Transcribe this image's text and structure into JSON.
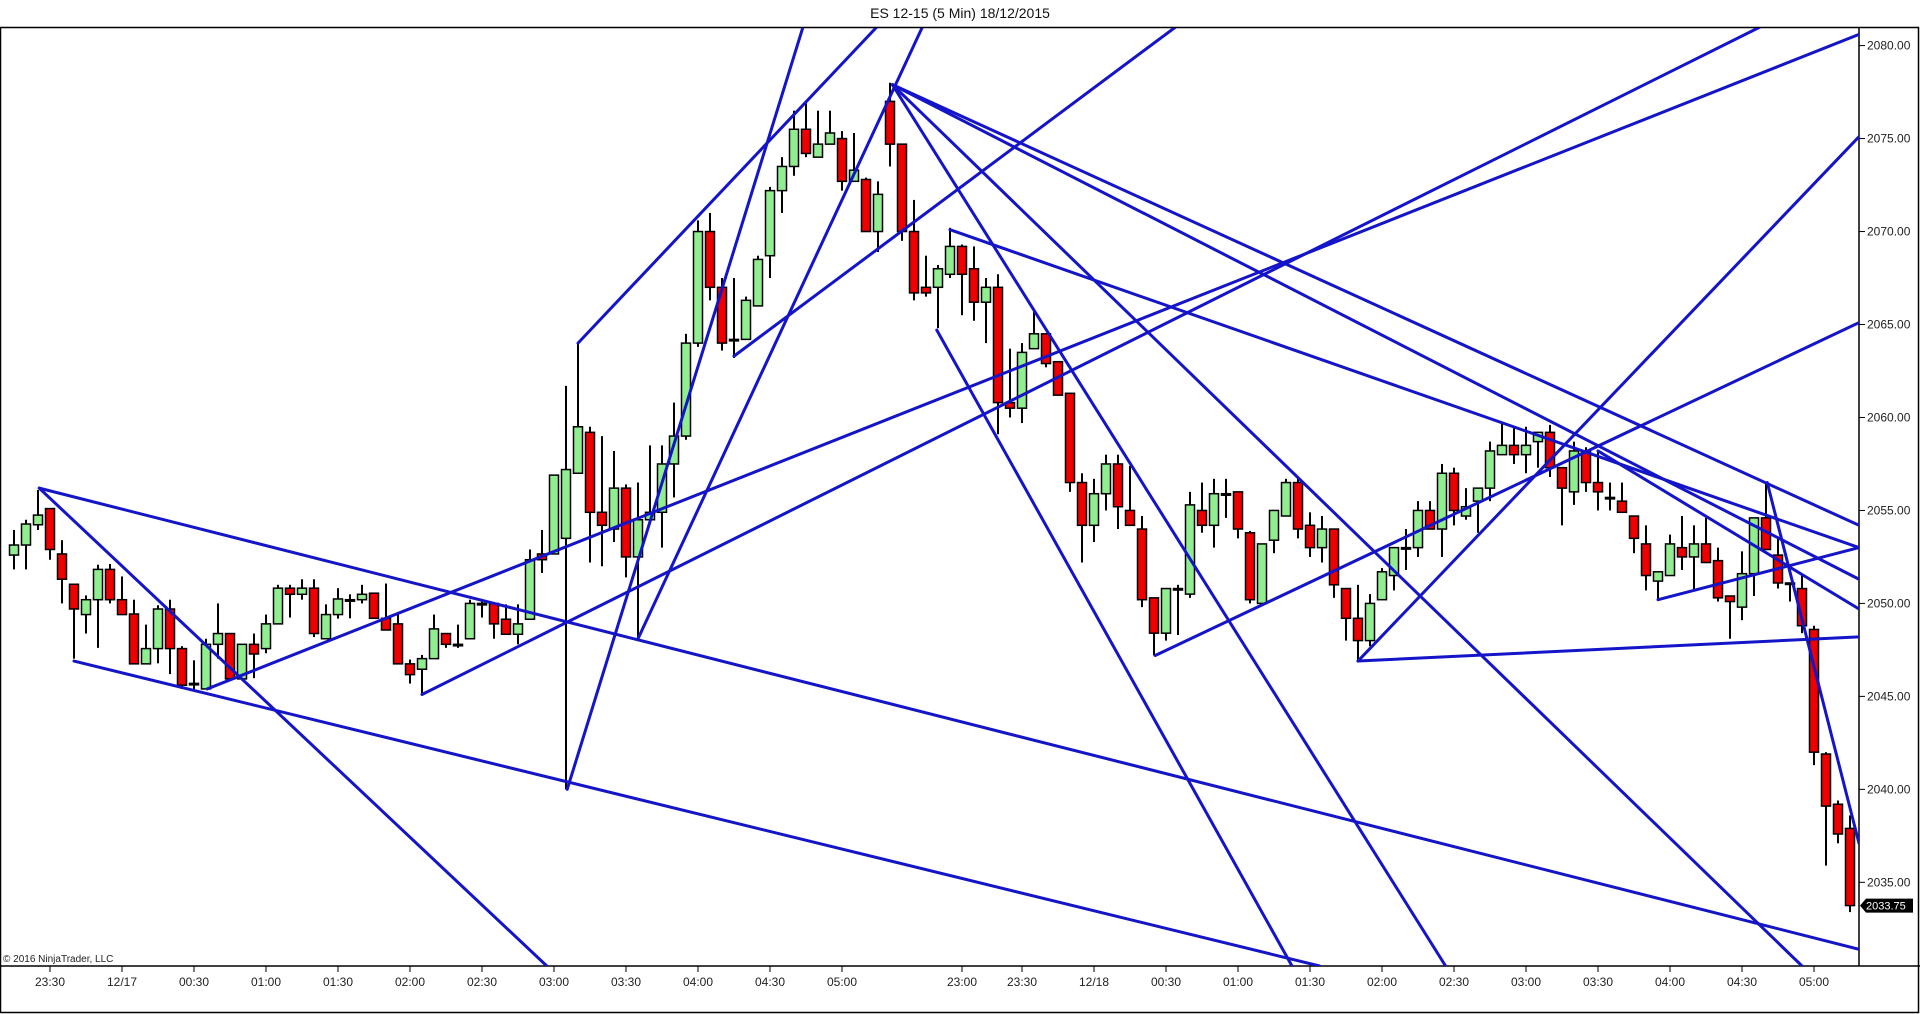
{
  "title": "ES 12-15 (5 Min)  18/12/2015",
  "copyright": "© 2016 NinjaTrader, LLC",
  "last_price_label": "2033.75",
  "colors": {
    "up": "#90EE90",
    "down": "#EE0000",
    "outline": "#000000",
    "drawing": "#1414C8",
    "tag_bg": "#000000"
  },
  "chart_data": {
    "type": "candlestick",
    "instrument": "ES 12-15",
    "interval": "5 Min",
    "ylim": [
      2030.5,
      2081.0
    ],
    "grid": false,
    "y_ticks": [
      {
        "value": 2080,
        "label": "2080.00"
      },
      {
        "value": 2075,
        "label": "2075.00"
      },
      {
        "value": 2070,
        "label": "2070.00"
      },
      {
        "value": 2065,
        "label": "2065.00"
      },
      {
        "value": 2060,
        "label": "2060.00"
      },
      {
        "value": 2055,
        "label": "2055.00"
      },
      {
        "value": 2050,
        "label": "2050.00"
      },
      {
        "value": 2045,
        "label": "2045.00"
      },
      {
        "value": 2040,
        "label": "2040.00"
      },
      {
        "value": 2035,
        "label": "2035.00"
      }
    ],
    "x_ticks": [
      {
        "bar": 3,
        "label": "23:30"
      },
      {
        "bar": 9,
        "label": "12/17"
      },
      {
        "bar": 15,
        "label": "00:30"
      },
      {
        "bar": 21,
        "label": "01:00"
      },
      {
        "bar": 27,
        "label": "01:30"
      },
      {
        "bar": 33,
        "label": "02:00"
      },
      {
        "bar": 39,
        "label": "02:30"
      },
      {
        "bar": 45,
        "label": "03:00"
      },
      {
        "bar": 51,
        "label": "03:30"
      },
      {
        "bar": 57,
        "label": "04:00"
      },
      {
        "bar": 63,
        "label": "04:30"
      },
      {
        "bar": 69,
        "label": "05:00"
      },
      {
        "bar": 79,
        "label": "23:00"
      },
      {
        "bar": 84,
        "label": "23:30"
      },
      {
        "bar": 90,
        "label": "12/18"
      },
      {
        "bar": 96,
        "label": "00:30"
      },
      {
        "bar": 102,
        "label": "01:00"
      },
      {
        "bar": 108,
        "label": "01:30"
      },
      {
        "bar": 114,
        "label": "02:00"
      },
      {
        "bar": 120,
        "label": "02:30"
      },
      {
        "bar": 126,
        "label": "03:00"
      },
      {
        "bar": 132,
        "label": "03:30"
      },
      {
        "bar": 138,
        "label": "04:00"
      },
      {
        "bar": 144,
        "label": "04:30"
      },
      {
        "bar": 150,
        "label": "05:00"
      }
    ],
    "ohlc_fields": [
      "open",
      "high",
      "low",
      "close"
    ],
    "bars": [
      [
        2052.6,
        2053.95,
        2051.83,
        2053.14
      ],
      [
        2053.14,
        2054.5,
        2051.83,
        2054.27
      ],
      [
        2054.23,
        2056.1,
        2053.95,
        2054.75
      ],
      [
        2055.1,
        2055.1,
        2052.35,
        2052.9
      ],
      [
        2052.66,
        2053.4,
        2050,
        2051.3
      ],
      [
        2051.03,
        2051.03,
        2047.03,
        2049.7
      ],
      [
        2049.4,
        2050.43,
        2048.38,
        2050.2
      ],
      [
        2050.2,
        2052.08,
        2047.61,
        2051.83
      ],
      [
        2051.83,
        2052.12,
        2050,
        2050.2
      ],
      [
        2050.2,
        2051.45,
        2049.4,
        2049.4
      ],
      [
        2049.43,
        2050.2,
        2046.75,
        2046.75
      ],
      [
        2046.75,
        2048.86,
        2046.75,
        2047.57
      ],
      [
        2047.57,
        2049.9,
        2046.78,
        2049.7
      ],
      [
        2049.7,
        2050.2,
        2046.2,
        2047.57
      ],
      [
        2047.57,
        2047.7,
        2045.4,
        2045.6
      ],
      [
        2045.7,
        2046.94,
        2045.4,
        2045.7
      ],
      [
        2045.4,
        2048.1,
        2045.4,
        2047.8
      ],
      [
        2047.8,
        2050,
        2047.03,
        2048.38
      ],
      [
        2048.38,
        2048.38,
        2045.94,
        2045.94
      ],
      [
        2045.94,
        2047.8,
        2045.94,
        2047.8
      ],
      [
        2047.8,
        2048.38,
        2045.98,
        2047.28
      ],
      [
        2047.57,
        2049.4,
        2047.32,
        2048.9
      ],
      [
        2048.9,
        2051,
        2048.9,
        2050.82
      ],
      [
        2050.82,
        2051,
        2049.24,
        2050.49
      ],
      [
        2050.49,
        2051.3,
        2050.2,
        2050.82
      ],
      [
        2050.82,
        2051.3,
        2048.19,
        2048.38
      ],
      [
        2048.1,
        2049.95,
        2048.1,
        2049.4
      ],
      [
        2049.4,
        2050.82,
        2049.18,
        2050.24
      ],
      [
        2050.2,
        2050.49,
        2049.2,
        2050.2
      ],
      [
        2050.2,
        2051,
        2050,
        2050.49
      ],
      [
        2050.55,
        2050.55,
        2049.2,
        2049.2
      ],
      [
        2049.2,
        2051.07,
        2048.57,
        2048.57
      ],
      [
        2048.9,
        2049.47,
        2046.75,
        2046.75
      ],
      [
        2046.75,
        2046.98,
        2045.69,
        2046.17
      ],
      [
        2046.46,
        2047.23,
        2045.1,
        2047.03
      ],
      [
        2047.03,
        2049.4,
        2047.03,
        2048.63
      ],
      [
        2048.38,
        2048.38,
        2047.61,
        2047.8
      ],
      [
        2047.8,
        2048.86,
        2047.61,
        2047.8
      ],
      [
        2048.1,
        2050.2,
        2048.1,
        2050
      ],
      [
        2050,
        2050.2,
        2049.24,
        2050
      ],
      [
        2050,
        2050,
        2048.1,
        2048.9
      ],
      [
        2049.15,
        2049.95,
        2048.34,
        2048.34
      ],
      [
        2048.34,
        2049.95,
        2047.8,
        2048.9
      ],
      [
        2049.15,
        2052.9,
        2049.15,
        2052.35
      ],
      [
        2052.66,
        2053.95,
        2051.64,
        2052.35
      ],
      [
        2052.66,
        2056.9,
        2052.66,
        2056.9
      ],
      [
        2053.5,
        2061.7,
        2040,
        2057.2
      ],
      [
        2057,
        2064,
        2057,
        2059.5
      ],
      [
        2059.2,
        2059.5,
        2052.2,
        2054.9
      ],
      [
        2054.9,
        2059,
        2052,
        2054.2
      ],
      [
        2054,
        2058.2,
        2053.3,
        2056.2
      ],
      [
        2056.2,
        2056.4,
        2051.4,
        2052.5
      ],
      [
        2052.5,
        2056.5,
        2048.1,
        2054.5
      ],
      [
        2054.5,
        2058.5,
        2054.3,
        2054.9
      ],
      [
        2054.9,
        2058.5,
        2053,
        2057.5
      ],
      [
        2057.5,
        2060.8,
        2055.7,
        2059
      ],
      [
        2059,
        2064.5,
        2058.8,
        2064
      ],
      [
        2064,
        2070.6,
        2063.8,
        2070
      ],
      [
        2070,
        2071,
        2066.3,
        2067
      ],
      [
        2067,
        2067.5,
        2063.6,
        2064
      ],
      [
        2064.2,
        2067.5,
        2063.2,
        2064.2
      ],
      [
        2064.2,
        2066.5,
        2064.2,
        2066.3
      ],
      [
        2066,
        2068.7,
        2066,
        2068.5
      ],
      [
        2068.7,
        2072.4,
        2067.5,
        2072.2
      ],
      [
        2072.2,
        2074,
        2071,
        2073.5
      ],
      [
        2073.5,
        2076.5,
        2073,
        2075.5
      ],
      [
        2075.5,
        2076.9,
        2074,
        2074.2
      ],
      [
        2074,
        2076.5,
        2074,
        2074.7
      ],
      [
        2074.7,
        2076.5,
        2074.7,
        2075.3
      ],
      [
        2075,
        2075.4,
        2072.2,
        2072.7
      ],
      [
        2072.7,
        2075.3,
        2072.7,
        2073.3
      ],
      [
        2072.8,
        2072.9,
        2070,
        2070
      ],
      [
        2070,
        2072.7,
        2068.9,
        2072
      ],
      [
        2077,
        2078,
        2073.5,
        2074.7
      ],
      [
        2074.7,
        2074.7,
        2069.5,
        2070
      ],
      [
        2070,
        2071.7,
        2066.3,
        2066.7
      ],
      [
        2067,
        2068.7,
        2066.5,
        2066.7
      ],
      [
        2067,
        2068.2,
        2064.8,
        2068
      ],
      [
        2067.7,
        2070.2,
        2067.5,
        2069.2
      ],
      [
        2069.2,
        2069.3,
        2065.5,
        2067.7
      ],
      [
        2068,
        2069.2,
        2065.2,
        2066.2
      ],
      [
        2066.2,
        2067.5,
        2064,
        2067
      ],
      [
        2067,
        2067.7,
        2059.1,
        2060.8
      ],
      [
        2060.8,
        2063.7,
        2060,
        2060.5
      ],
      [
        2060.5,
        2064,
        2059.7,
        2063.5
      ],
      [
        2063.7,
        2065.8,
        2063.7,
        2064.5
      ],
      [
        2064.5,
        2064.5,
        2062.7,
        2062.9
      ],
      [
        2063,
        2063,
        2061.2,
        2061.2
      ],
      [
        2061.3,
        2061.3,
        2056,
        2056.5
      ],
      [
        2056.5,
        2057,
        2052.2,
        2054.2
      ],
      [
        2054.2,
        2056.7,
        2053.3,
        2055.9
      ],
      [
        2055.9,
        2058,
        2055,
        2057.5
      ],
      [
        2057.5,
        2058,
        2054,
        2055.2
      ],
      [
        2055,
        2057.4,
        2054.2,
        2054.2
      ],
      [
        2054,
        2054.7,
        2049.8,
        2050.2
      ],
      [
        2050.3,
        2050.3,
        2047.2,
        2048.4
      ],
      [
        2048.4,
        2050.8,
        2048,
        2050.8
      ],
      [
        2050.8,
        2051,
        2048.3,
        2050.8
      ],
      [
        2050.5,
        2056,
        2050.3,
        2055.3
      ],
      [
        2055,
        2056.5,
        2053.8,
        2054.2
      ],
      [
        2054.2,
        2056.7,
        2053,
        2055.9
      ],
      [
        2055.9,
        2056.7,
        2054.6,
        2055.9
      ],
      [
        2056,
        2056,
        2053.5,
        2054
      ],
      [
        2053.8,
        2053.9,
        2050,
        2050.2
      ],
      [
        2050,
        2053.2,
        2050,
        2053.2
      ],
      [
        2053.4,
        2055,
        2052.7,
        2055
      ],
      [
        2054.7,
        2056.7,
        2054.7,
        2056.5
      ],
      [
        2056.5,
        2056.7,
        2053.5,
        2054
      ],
      [
        2054.2,
        2054.9,
        2052.5,
        2053
      ],
      [
        2053,
        2054.7,
        2052.2,
        2054
      ],
      [
        2054,
        2054,
        2050.3,
        2051
      ],
      [
        2050.8,
        2050.8,
        2048,
        2049.2
      ],
      [
        2049.2,
        2051,
        2046.9,
        2048
      ],
      [
        2048,
        2050.5,
        2047.7,
        2050
      ],
      [
        2050.2,
        2051.9,
        2050.2,
        2051.7
      ],
      [
        2051.5,
        2053,
        2050.7,
        2053
      ],
      [
        2053,
        2054,
        2051.8,
        2053
      ],
      [
        2053,
        2055.5,
        2052.5,
        2055
      ],
      [
        2055,
        2055.5,
        2054,
        2054
      ],
      [
        2054,
        2057.5,
        2052.5,
        2057
      ],
      [
        2057,
        2057.3,
        2054.2,
        2055
      ],
      [
        2054.7,
        2056.2,
        2054.5,
        2055.2
      ],
      [
        2055.5,
        2056.2,
        2053.8,
        2056.2
      ],
      [
        2056.2,
        2058.7,
        2055.5,
        2058.2
      ],
      [
        2058,
        2059.7,
        2058,
        2058.5
      ],
      [
        2058.5,
        2059.5,
        2057.5,
        2058
      ],
      [
        2058,
        2059.5,
        2057,
        2058.5
      ],
      [
        2058.7,
        2059.2,
        2057.3,
        2059.2
      ],
      [
        2059.2,
        2059.6,
        2056.8,
        2057.3
      ],
      [
        2057.3,
        2057.3,
        2054.2,
        2056.2
      ],
      [
        2056,
        2058.7,
        2055.3,
        2058.2
      ],
      [
        2058.2,
        2058.4,
        2056,
        2056.5
      ],
      [
        2056.5,
        2058.2,
        2055,
        2056
      ],
      [
        2055.7,
        2056.5,
        2055,
        2055.7
      ],
      [
        2055.5,
        2056.5,
        2054.9,
        2054.9
      ],
      [
        2054.7,
        2054.7,
        2052.7,
        2053.5
      ],
      [
        2053.2,
        2054.2,
        2050.7,
        2051.5
      ],
      [
        2051.2,
        2051.7,
        2050.2,
        2051.7
      ],
      [
        2051.5,
        2053.7,
        2051.5,
        2053.2
      ],
      [
        2053,
        2054.7,
        2051.8,
        2052.5
      ],
      [
        2052.5,
        2054.2,
        2050.7,
        2053.2
      ],
      [
        2053.2,
        2054.6,
        2052.2,
        2052.2
      ],
      [
        2052.3,
        2053,
        2050.1,
        2050.3
      ],
      [
        2050.4,
        2050.4,
        2048.1,
        2050.1
      ],
      [
        2049.8,
        2052.8,
        2049.1,
        2051.6
      ],
      [
        2051.6,
        2054.6,
        2050.4,
        2054.6
      ],
      [
        2054.6,
        2056.5,
        2052.9,
        2052.9
      ],
      [
        2052.6,
        2053.5,
        2050.8,
        2051.1
      ],
      [
        2051.1,
        2051.1,
        2050.1,
        2051.1
      ],
      [
        2050.8,
        2051.6,
        2048.4,
        2048.8
      ],
      [
        2048.6,
        2048.8,
        2041.3,
        2042
      ],
      [
        2041.9,
        2042,
        2035.9,
        2039.1
      ],
      [
        2039.2,
        2039.4,
        2037.1,
        2037.6
      ],
      [
        2037.9,
        2038.6,
        2033.4,
        2033.75
      ]
    ],
    "last_price": 2033.75,
    "trend_lines": [
      {
        "from": [
          2.1,
          2056.2
        ],
        "to": [
          153.75,
          2031.4
        ]
      },
      {
        "from": [
          2.1,
          2056.2
        ],
        "to": [
          44.4,
          2030.5
        ]
      },
      {
        "from": [
          5.0,
          2046.9
        ],
        "to": [
          108.8,
          2030.5
        ]
      },
      {
        "from": [
          16.1,
          2045.4
        ],
        "to": [
          153.75,
          2080.6
        ]
      },
      {
        "from": [
          34.0,
          2045.1
        ],
        "to": [
          145.5,
          2081.0
        ]
      },
      {
        "from": [
          46.1,
          2040.0
        ],
        "to": [
          65.75,
          2081.0
        ]
      },
      {
        "from": [
          52.0,
          2048.1
        ],
        "to": [
          75.7,
          2081.0
        ]
      },
      {
        "from": [
          47.0,
          2064.0
        ],
        "to": [
          71.9,
          2081.0
        ]
      },
      {
        "from": [
          60.0,
          2063.3
        ],
        "to": [
          96.8,
          2081.0
        ]
      },
      {
        "from": [
          73.2,
          2077.9
        ],
        "to": [
          153.75,
          2054.2
        ]
      },
      {
        "from": [
          73.2,
          2077.9
        ],
        "to": [
          153.75,
          2051.3
        ]
      },
      {
        "from": [
          73.2,
          2077.9
        ],
        "to": [
          119.3,
          2030.5
        ]
      },
      {
        "from": [
          73.2,
          2077.9
        ],
        "to": [
          149.0,
          2030.5
        ]
      },
      {
        "from": [
          76.9,
          2064.7
        ],
        "to": [
          106.5,
          2030.5
        ]
      },
      {
        "from": [
          78.0,
          2070.1
        ],
        "to": [
          153.75,
          2053.0
        ]
      },
      {
        "from": [
          95.1,
          2047.2
        ],
        "to": [
          153.75,
          2065.1
        ]
      },
      {
        "from": [
          112.0,
          2046.9
        ],
        "to": [
          153.75,
          2075.1
        ]
      },
      {
        "from": [
          112.0,
          2046.9
        ],
        "to": [
          153.75,
          2048.2
        ]
      },
      {
        "from": [
          132.0,
          2058.2
        ],
        "to": [
          153.75,
          2049.7
        ]
      },
      {
        "from": [
          137.0,
          2050.2
        ],
        "to": [
          153.75,
          2053.0
        ]
      },
      {
        "from": [
          146.1,
          2056.5
        ],
        "to": [
          153.75,
          2037.1
        ]
      }
    ]
  }
}
